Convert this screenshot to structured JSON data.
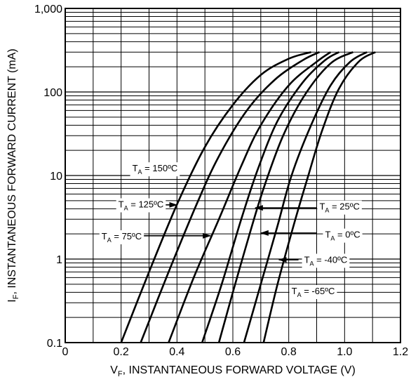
{
  "chart_data": {
    "type": "line",
    "xlabel_main": "V",
    "xlabel_sub": "F",
    "xlabel_rest": ", INSTANTANEOUS FORWARD VOLTAGE (V)",
    "ylabel_main": "I",
    "ylabel_sub": "F",
    "ylabel_rest": ", INSTANTANEOUS FORWARD CURRENT (mA)",
    "xlim": [
      0,
      1.2
    ],
    "ylim": [
      0.1,
      1000
    ],
    "yscale": "log",
    "grid": true,
    "x_ticks": [
      {
        "value": 0,
        "label": "0"
      },
      {
        "value": 0.2,
        "label": "0.2"
      },
      {
        "value": 0.4,
        "label": "0.4"
      },
      {
        "value": 0.6,
        "label": "0.6"
      },
      {
        "value": 0.8,
        "label": "0.8"
      },
      {
        "value": 1.0,
        "label": "1.0"
      },
      {
        "value": 1.2,
        "label": "1.2"
      }
    ],
    "y_ticks": [
      {
        "value": 0.1,
        "label": "0.1"
      },
      {
        "value": 1,
        "label": "1"
      },
      {
        "value": 10,
        "label": "10"
      },
      {
        "value": 100,
        "label": "100"
      },
      {
        "value": 1000,
        "label": "1,000"
      }
    ],
    "series": [
      {
        "temp": "150ºC",
        "points": [
          [
            0.2,
            0.1
          ],
          [
            0.3,
            0.7
          ],
          [
            0.4,
            4.5
          ],
          [
            0.5,
            22
          ],
          [
            0.6,
            70
          ],
          [
            0.7,
            160
          ],
          [
            0.8,
            250
          ],
          [
            0.88,
            300
          ]
        ]
      },
      {
        "temp": "125ºC",
        "points": [
          [
            0.27,
            0.1
          ],
          [
            0.37,
            0.7
          ],
          [
            0.47,
            4.5
          ],
          [
            0.55,
            17
          ],
          [
            0.65,
            60
          ],
          [
            0.75,
            140
          ],
          [
            0.85,
            240
          ],
          [
            0.91,
            300
          ]
        ]
      },
      {
        "temp": "75ºC",
        "points": [
          [
            0.37,
            0.1
          ],
          [
            0.46,
            0.6
          ],
          [
            0.55,
            3
          ],
          [
            0.63,
            13
          ],
          [
            0.7,
            40
          ],
          [
            0.8,
            120
          ],
          [
            0.9,
            230
          ],
          [
            0.95,
            300
          ]
        ]
      },
      {
        "temp": "25ºC",
        "points": [
          [
            0.49,
            0.1
          ],
          [
            0.56,
            0.5
          ],
          [
            0.63,
            3
          ],
          [
            0.69,
            12
          ],
          [
            0.76,
            45
          ],
          [
            0.85,
            130
          ],
          [
            0.93,
            240
          ],
          [
            0.98,
            300
          ]
        ]
      },
      {
        "temp": "0ºC",
        "points": [
          [
            0.55,
            0.1
          ],
          [
            0.6,
            0.4
          ],
          [
            0.66,
            2
          ],
          [
            0.71,
            7
          ],
          [
            0.78,
            30
          ],
          [
            0.86,
            95
          ],
          [
            0.95,
            220
          ],
          [
            1.03,
            300
          ]
        ]
      },
      {
        "temp": "-40ºC",
        "points": [
          [
            0.64,
            0.1
          ],
          [
            0.7,
            0.5
          ],
          [
            0.76,
            2.5
          ],
          [
            0.81,
            10
          ],
          [
            0.88,
            40
          ],
          [
            0.95,
            120
          ],
          [
            1.02,
            230
          ],
          [
            1.08,
            300
          ]
        ]
      },
      {
        "temp": "-65ºC",
        "points": [
          [
            0.71,
            0.1
          ],
          [
            0.76,
            0.5
          ],
          [
            0.82,
            2.7
          ],
          [
            0.87,
            10
          ],
          [
            0.92,
            35
          ],
          [
            0.98,
            110
          ],
          [
            1.05,
            230
          ],
          [
            1.11,
            300
          ]
        ]
      }
    ],
    "annotations": [
      {
        "prefix": "T",
        "sub": "A",
        "text": " = 150ºC",
        "x": 0.24,
        "y": 11.2,
        "arrow": null
      },
      {
        "prefix": "T",
        "sub": "A",
        "text": " = 125ºC",
        "x": 0.19,
        "y": 4.15,
        "arrow": {
          "from": [
            0.3,
            4.45
          ],
          "to": [
            0.4,
            4.45
          ]
        }
      },
      {
        "prefix": "T",
        "sub": "A",
        "text": " = 75ºC",
        "x": 0.13,
        "y": 1.72,
        "arrow": {
          "from": [
            0.22,
            1.9
          ],
          "to": [
            0.52,
            1.9
          ]
        }
      },
      {
        "prefix": "T",
        "sub": "A",
        "text": " = 25ºC",
        "x": 0.91,
        "y": 3.9,
        "arrow": {
          "from": [
            0.9,
            4.1
          ],
          "to": [
            0.68,
            4.1
          ]
        }
      },
      {
        "prefix": "T",
        "sub": "A",
        "text": " = 0ºC",
        "x": 0.93,
        "y": 1.8,
        "arrow": {
          "from": [
            0.9,
            2.05
          ],
          "to": [
            0.7,
            2.05
          ]
        }
      },
      {
        "prefix": "T",
        "sub": "A",
        "text": " = -40ºC",
        "x": 0.855,
        "y": 0.9,
        "arrow": {
          "from": [
            0.835,
            0.98
          ],
          "to": [
            0.765,
            0.98
          ]
        }
      },
      {
        "prefix": "T",
        "sub": "A",
        "text": " = -65ºC",
        "x": 0.81,
        "y": 0.38,
        "arrow": null
      }
    ]
  }
}
